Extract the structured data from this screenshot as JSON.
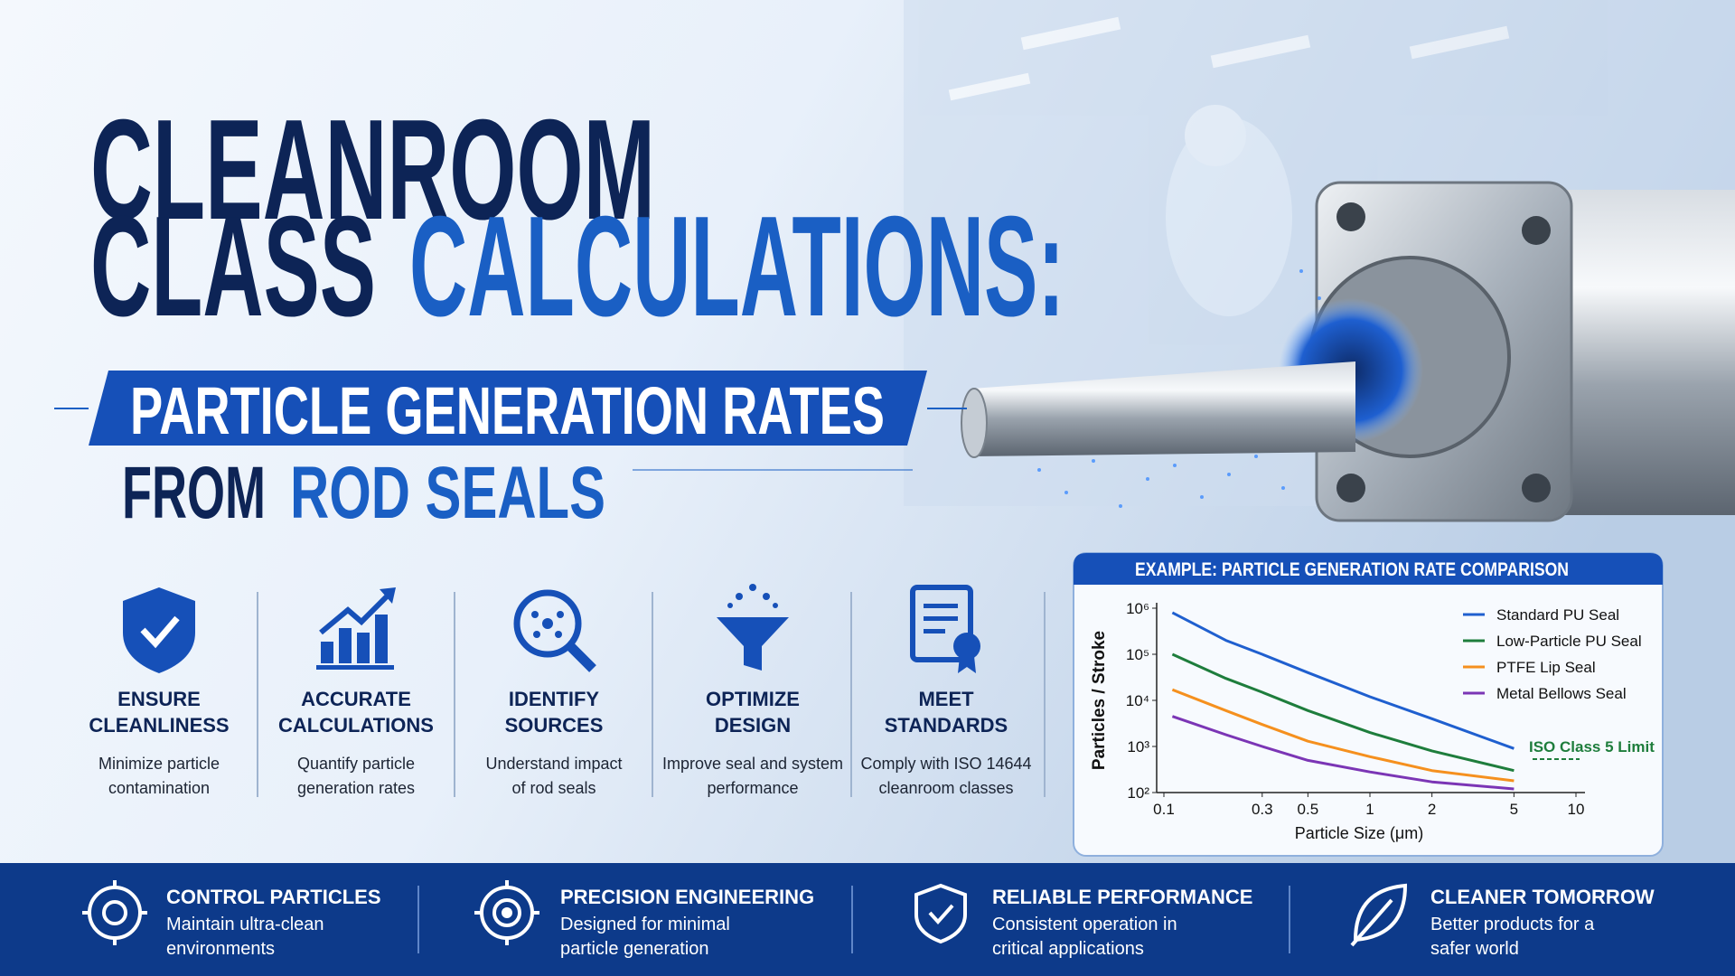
{
  "header": {
    "title_line1": "CLEANROOM",
    "title_line2a": "CLASS",
    "title_line2b": "CALCULATIONS:",
    "banner": "PARTICLE GENERATION RATES",
    "subtitle_a": "FROM",
    "subtitle_b": "ROD SEALS"
  },
  "features": [
    {
      "title": [
        "ENSURE",
        "CLEANLINESS"
      ],
      "description": [
        "Minimize particle",
        "contamination"
      ]
    },
    {
      "title": [
        "ACCURATE",
        "CALCULATIONS"
      ],
      "description": [
        "Quantify particle",
        "generation rates"
      ]
    },
    {
      "title": [
        "IDENTIFY",
        "SOURCES"
      ],
      "description": [
        "Understand impact",
        "of rod seals"
      ]
    },
    {
      "title": [
        "OPTIMIZE",
        "DESIGN"
      ],
      "description": [
        "Improve seal and system",
        "performance"
      ]
    },
    {
      "title": [
        "MEET",
        "STANDARDS"
      ],
      "description": [
        "Comply with ISO 14644",
        "cleanroom classes"
      ]
    }
  ],
  "chart_data": {
    "type": "line",
    "title": "EXAMPLE: PARTICLE GENERATION RATE COMPARISON",
    "xlabel": "Particle Size (μm)",
    "ylabel": "Particles / Stroke",
    "x": [
      0.11,
      0.2,
      0.3,
      0.5,
      1,
      2,
      5
    ],
    "xscale": "log",
    "yscale": "log",
    "xlim": [
      0.1,
      10
    ],
    "xticks": [
      0.1,
      0.3,
      0.5,
      1,
      2,
      5,
      10
    ],
    "ylim": [
      100,
      1000000
    ],
    "yticks": [
      {
        "value": 100,
        "label": "10²"
      },
      {
        "value": 1000,
        "label": "10³"
      },
      {
        "value": 10000,
        "label": "10⁴"
      },
      {
        "value": 100000,
        "label": "10⁵"
      },
      {
        "value": 1000000,
        "label": "10⁶"
      }
    ],
    "grid": false,
    "legend": "upper right",
    "series": [
      {
        "name": "Standard PU Seal",
        "color": "#1f5fcf",
        "values": [
          800000,
          200000,
          100000,
          40000,
          12000,
          4000,
          900
        ]
      },
      {
        "name": "Low-Particle PU Seal",
        "color": "#1e7d3c",
        "values": [
          100000,
          30000,
          15000,
          6000,
          2000,
          800,
          300
        ]
      },
      {
        "name": "PTFE Lip Seal",
        "color": "#f5901e",
        "values": [
          17000,
          6000,
          3000,
          1300,
          600,
          300,
          180
        ]
      },
      {
        "name": "Metal Bellows Seal",
        "color": "#7b35b5",
        "values": [
          4500,
          1800,
          1000,
          500,
          280,
          170,
          120
        ]
      }
    ],
    "annotation": "ISO Class 5 Limit"
  },
  "footer": [
    {
      "title": "CONTROL PARTICLES",
      "description": [
        "Maintain ultra-clean",
        "environments"
      ]
    },
    {
      "title": "PRECISION ENGINEERING",
      "description": [
        "Designed for minimal",
        "particle generation"
      ]
    },
    {
      "title": "RELIABLE PERFORMANCE",
      "description": [
        "Consistent operation in",
        "critical applications"
      ]
    },
    {
      "title": "CLEANER TOMORROW",
      "description": [
        "Better products for a",
        "safer world"
      ]
    }
  ]
}
